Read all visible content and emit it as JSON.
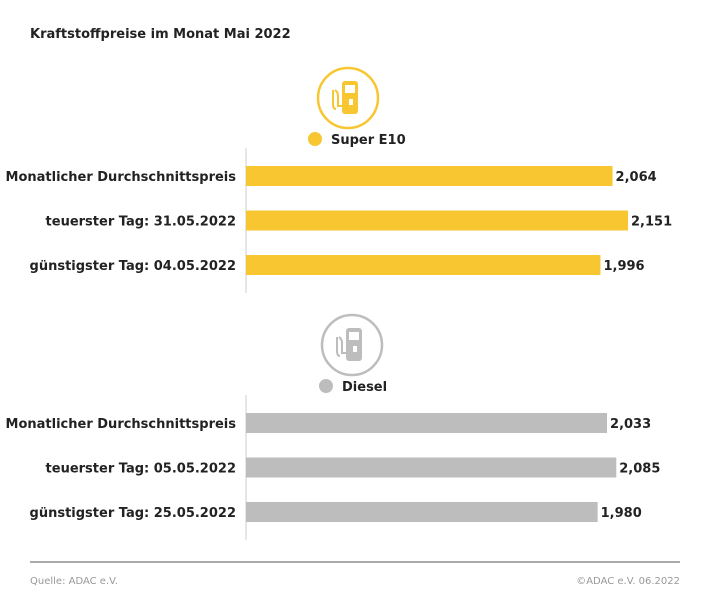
{
  "title": "Kraftstoffpreise im Monat Mai 2022",
  "chart_data": [
    {
      "type": "bar",
      "orientation": "horizontal",
      "series_name": "Super E10",
      "color": "#F8C631",
      "icon": "fuel-pump-icon",
      "categories": [
        "Monatlicher Durchschnittspreis",
        "teuerster Tag: 31.05.2022",
        "günstigster Tag: 04.05.2022"
      ],
      "values": [
        2.064,
        2.151,
        1.996
      ],
      "labels": [
        "2,064",
        "2,151",
        "1,996"
      ],
      "xlim": [
        0,
        2.151
      ]
    },
    {
      "type": "bar",
      "orientation": "horizontal",
      "series_name": "Diesel",
      "color": "#BDBDBD",
      "icon": "fuel-pump-icon",
      "categories": [
        "Monatlicher Durchschnittspreis",
        "teuerster Tag: 05.05.2022",
        "günstigster Tag: 25.05.2022"
      ],
      "values": [
        2.033,
        2.085,
        1.98
      ],
      "labels": [
        "2,033",
        "2,085",
        "1,980"
      ],
      "xlim": [
        0,
        2.151
      ]
    }
  ],
  "footer": {
    "source": "Quelle: ADAC e.V.",
    "copyright": "©ADAC e.V. 06.2022"
  }
}
